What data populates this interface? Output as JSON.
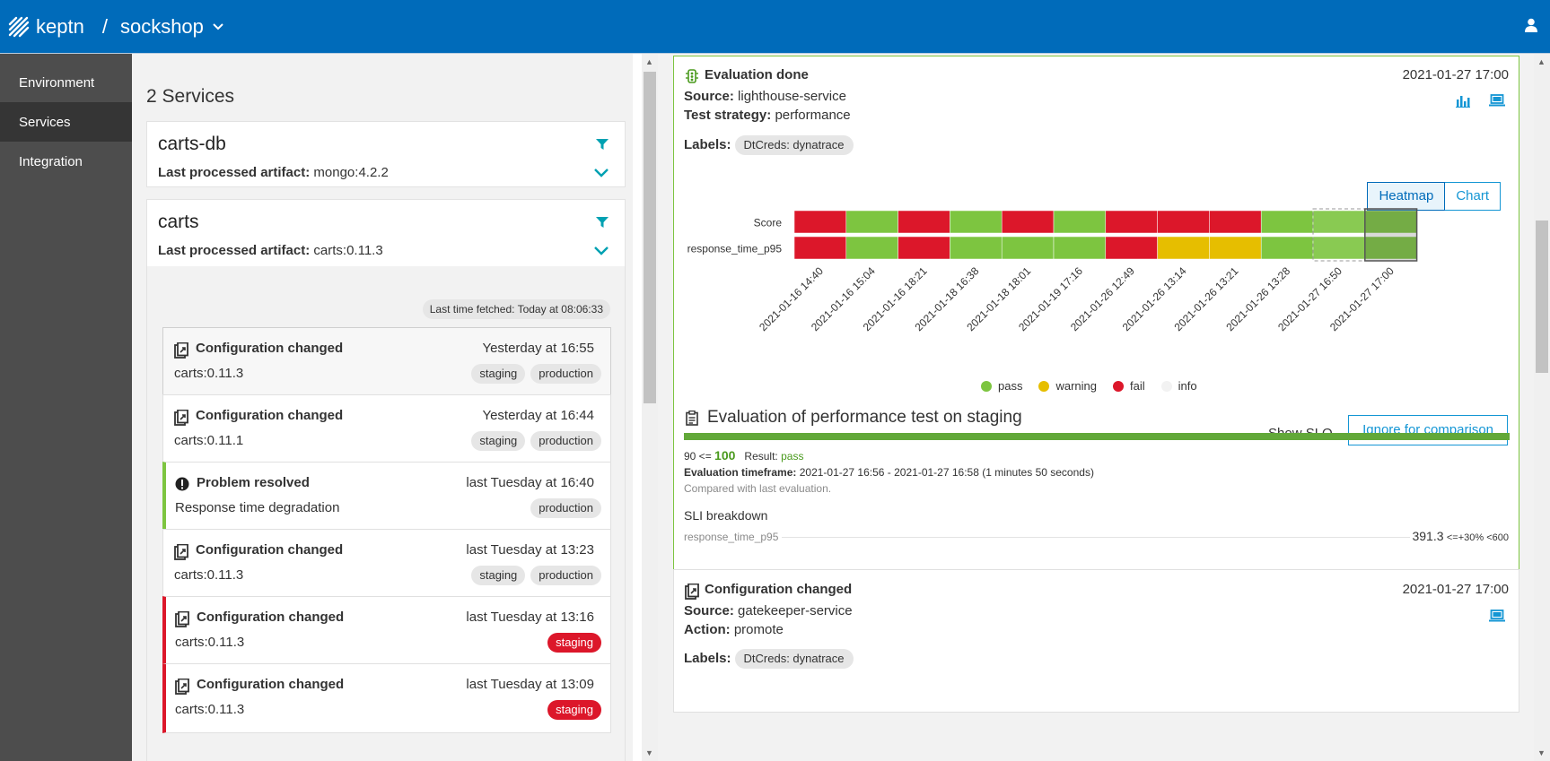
{
  "header": {
    "brand": "keptn",
    "separator": "/",
    "project": "sockshop"
  },
  "sidebar": {
    "items": [
      {
        "label": "Environment"
      },
      {
        "label": "Services"
      },
      {
        "label": "Integration"
      }
    ]
  },
  "services": {
    "title": "2 Services",
    "artifact_label": "Last processed artifact:",
    "items": [
      {
        "name": "carts-db",
        "artifact": "mongo:4.2.2"
      },
      {
        "name": "carts",
        "artifact": "carts:0.11.3"
      }
    ],
    "last_fetched": "Last time fetched: Today at 08:06:33",
    "events": [
      {
        "title": "Configuration changed",
        "time": "Yesterday at 16:55",
        "sub": "carts:0.11.3",
        "tags": [
          "staging",
          "production"
        ],
        "icon": "config-changed-icon"
      },
      {
        "title": "Configuration changed",
        "time": "Yesterday at 16:44",
        "sub": "carts:0.11.1",
        "tags": [
          "staging",
          "production"
        ],
        "icon": "config-changed-icon"
      },
      {
        "title": "Problem resolved",
        "time": "last Tuesday at 16:40",
        "sub": "Response time degradation",
        "tags": [
          "production"
        ],
        "icon": "alert-icon"
      },
      {
        "title": "Configuration changed",
        "time": "last Tuesday at 13:23",
        "sub": "carts:0.11.3",
        "tags": [
          "staging",
          "production"
        ],
        "icon": "config-changed-icon"
      },
      {
        "title": "Configuration changed",
        "time": "last Tuesday at 13:16",
        "sub": "carts:0.11.3",
        "tags": [
          "staging"
        ],
        "icon": "config-changed-icon"
      },
      {
        "title": "Configuration changed",
        "time": "last Tuesday at 13:09",
        "sub": "carts:0.11.3",
        "tags": [
          "staging"
        ],
        "icon": "config-changed-icon"
      }
    ]
  },
  "evaluation": {
    "title": "Evaluation done",
    "time": "2021-01-27 17:00",
    "source_label": "Source:",
    "source": "lighthouse-service",
    "strategy_label": "Test strategy:",
    "strategy": "performance",
    "labels_label": "Labels:",
    "label_pill": "DtCreds: dynatrace",
    "toggle": {
      "heatmap": "Heatmap",
      "chart": "Chart"
    },
    "show_slo": "Show SLO",
    "ignore": "Ignore for comparison",
    "eval_title": "Evaluation of performance test on staging",
    "score_prefix": "90 <=",
    "score": "100",
    "result_label": "Result:",
    "result": "pass",
    "timeframe_label": "Evaluation timeframe:",
    "timeframe": "2021-01-27 16:56 - 2021-01-27 16:58 (1 minutes 50 seconds)",
    "compared": "Compared with last evaluation.",
    "sli_title": "SLI breakdown",
    "sli_name": "response_time_p95",
    "sli_value": "391.3",
    "sli_criteria": "<=+30% <600"
  },
  "chart_data": {
    "type": "heatmap",
    "rows": [
      "Score",
      "response_time_p95"
    ],
    "columns": [
      "2021-01-16 14:40",
      "2021-01-16 15:04",
      "2021-01-16 18:21",
      "2021-01-18 16:38",
      "2021-01-18 18:01",
      "2021-01-19 17:16",
      "2021-01-26 12:49",
      "2021-01-26 13:14",
      "2021-01-26 13:21",
      "2021-01-26 13:28",
      "2021-01-27 16:50",
      "2021-01-27 17:00"
    ],
    "values": [
      [
        "fail",
        "pass",
        "fail",
        "pass",
        "fail",
        "pass",
        "fail",
        "fail",
        "fail",
        "pass",
        "pass",
        "pass"
      ],
      [
        "fail",
        "pass",
        "fail",
        "pass",
        "pass",
        "pass",
        "fail",
        "warning",
        "warning",
        "pass",
        "pass",
        "pass"
      ]
    ],
    "selected_columns": [
      "2021-01-27 16:50",
      "2021-01-27 17:00"
    ],
    "legend": [
      "pass",
      "warning",
      "fail",
      "info"
    ],
    "legend_position": "bottom",
    "colors": {
      "pass": "#7dc540",
      "warning": "#e6be00",
      "fail": "#dc172a",
      "info": "#f2f2f2"
    }
  },
  "config_event": {
    "title": "Configuration changed",
    "time": "2021-01-27 17:00",
    "source_label": "Source:",
    "source": "gatekeeper-service",
    "action_label": "Action:",
    "action": "promote",
    "labels_label": "Labels:",
    "label_pill": "DtCreds: dynatrace"
  }
}
